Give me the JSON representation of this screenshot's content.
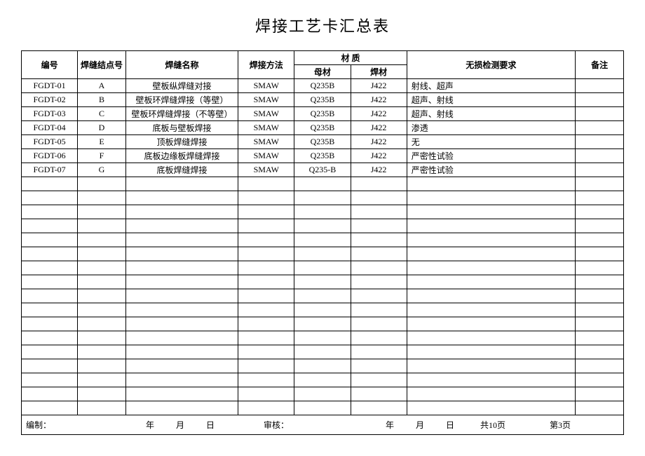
{
  "title": "焊接工艺卡汇总表",
  "headers": {
    "id": "编号",
    "node": "焊缝结点号",
    "name": "焊缝名称",
    "method": "焊接方法",
    "material": "材    质",
    "base_material": "母材",
    "weld_material": "焊材",
    "test": "无损检测要求",
    "note": "备注"
  },
  "rows": [
    {
      "id": "FGDT-01",
      "node": "A",
      "name": "壁板纵焊缝对接",
      "method": "SMAW",
      "base": "Q235B",
      "weld": "J422",
      "test": "射线、超声",
      "note": ""
    },
    {
      "id": "FGDT-02",
      "node": "B",
      "name": "壁板环焊缝焊接（等壁）",
      "method": "SMAW",
      "base": "Q235B",
      "weld": "J422",
      "test": "超声、射线",
      "note": ""
    },
    {
      "id": "FGDT-03",
      "node": "C",
      "name": "壁板环焊缝焊接（不等壁）",
      "method": "SMAW",
      "base": "Q235B",
      "weld": "J422",
      "test": "超声、射线",
      "note": ""
    },
    {
      "id": "FGDT-04",
      "node": "D",
      "name": "底板与壁板焊接",
      "method": "SMAW",
      "base": "Q235B",
      "weld": "J422",
      "test": "渗透",
      "note": ""
    },
    {
      "id": "FGDT-05",
      "node": "E",
      "name": "顶板焊缝焊接",
      "method": "SMAW",
      "base": "Q235B",
      "weld": "J422",
      "test": "无",
      "note": ""
    },
    {
      "id": "FGDT-06",
      "node": "F",
      "name": "底板边缘板焊缝焊接",
      "method": "SMAW",
      "base": "Q235B",
      "weld": "J422",
      "test": "严密性试验",
      "note": ""
    },
    {
      "id": "FGDT-07",
      "node": "G",
      "name": "底板焊缝焊接",
      "method": "SMAW",
      "base": "Q235-B",
      "weld": "J422",
      "test": "严密性试验",
      "note": ""
    }
  ],
  "empty_rows": 17,
  "footer": {
    "prepared": "编制：",
    "year1": "年",
    "month1": "月",
    "day1": "日",
    "review": "审核：",
    "year2": "年",
    "month2": "月",
    "day2": "日",
    "total_pages": "共10页",
    "current_page": "第3页"
  },
  "colors": {
    "border": "#000000",
    "background": "#ffffff",
    "text": "#000000"
  }
}
